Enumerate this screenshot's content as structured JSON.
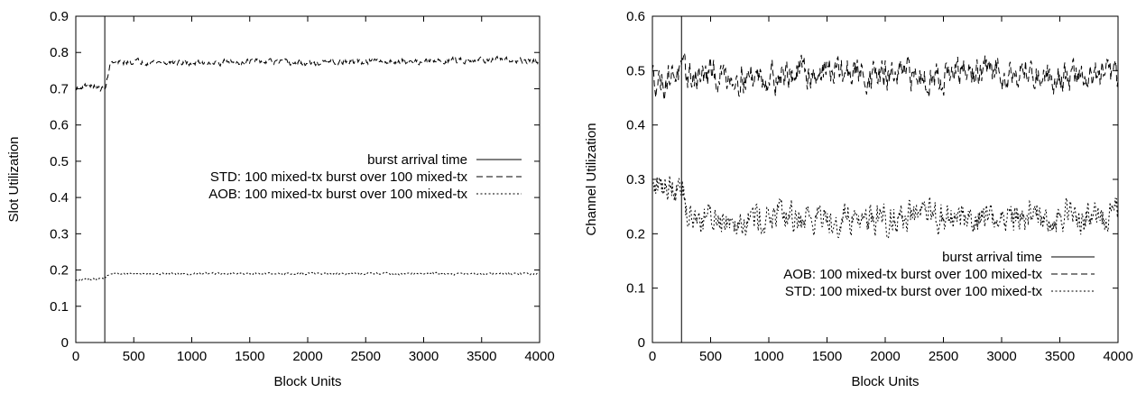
{
  "chart_data": [
    {
      "type": "line",
      "xlabel": "Block Units",
      "ylabel": "Slot Utilization",
      "xlim": [
        0,
        4000
      ],
      "ylim": [
        0,
        0.9
      ],
      "xticks": [
        "0",
        "500",
        "1000",
        "1500",
        "2000",
        "2500",
        "3000",
        "3500",
        "4000"
      ],
      "yticks": [
        "0",
        "0.1",
        "0.2",
        "0.3",
        "0.4",
        "0.5",
        "0.6",
        "0.7",
        "0.8",
        "0.9"
      ],
      "grid": false,
      "legend_position": "right",
      "burst_arrival_x": 250,
      "series": [
        {
          "name": "burst arrival time",
          "style": "solid",
          "kind": "vertical",
          "x": 250
        },
        {
          "name": "STD: 100 mixed-tx burst over 100 mixed-tx",
          "style": "dashed",
          "x": [
            0,
            100,
            200,
            250,
            300,
            500,
            1000,
            1500,
            2000,
            2500,
            3000,
            3500,
            4000
          ],
          "y": [
            0.7,
            0.71,
            0.7,
            0.7,
            0.77,
            0.775,
            0.77,
            0.775,
            0.77,
            0.775,
            0.775,
            0.78,
            0.775
          ]
        },
        {
          "name": "AOB: 100 mixed-tx burst over 100 mixed-tx",
          "style": "dotted",
          "x": [
            0,
            100,
            200,
            250,
            300,
            500,
            1000,
            1500,
            2000,
            2500,
            3000,
            3500,
            4000
          ],
          "y": [
            0.17,
            0.175,
            0.175,
            0.18,
            0.19,
            0.19,
            0.19,
            0.19,
            0.19,
            0.19,
            0.19,
            0.19,
            0.19
          ]
        }
      ]
    },
    {
      "type": "line",
      "xlabel": "Block Units",
      "ylabel": "Channel Utilization",
      "xlim": [
        0,
        4000
      ],
      "ylim": [
        0,
        0.6
      ],
      "xticks": [
        "0",
        "500",
        "1000",
        "1500",
        "2000",
        "2500",
        "3000",
        "3500",
        "4000"
      ],
      "yticks": [
        "0",
        "0.1",
        "0.2",
        "0.3",
        "0.4",
        "0.5",
        "0.6"
      ],
      "grid": false,
      "legend_position": "bottom-right",
      "burst_arrival_x": 250,
      "series": [
        {
          "name": "burst arrival time",
          "style": "solid",
          "kind": "vertical",
          "x": 250
        },
        {
          "name": "AOB: 100 mixed-tx burst over 100 mixed-tx",
          "style": "dashed",
          "x": [
            0,
            100,
            200,
            250,
            300,
            500,
            1000,
            1500,
            2000,
            2500,
            3000,
            3500,
            4000
          ],
          "y": [
            0.49,
            0.48,
            0.5,
            0.49,
            0.49,
            0.49,
            0.49,
            0.5,
            0.49,
            0.49,
            0.5,
            0.49,
            0.49
          ]
        },
        {
          "name": "STD: 100 mixed-tx burst over 100 mixed-tx",
          "style": "dotted",
          "x": [
            0,
            100,
            200,
            250,
            300,
            500,
            1000,
            1500,
            2000,
            2500,
            3000,
            3500,
            4000
          ],
          "y": [
            0.28,
            0.29,
            0.29,
            0.3,
            0.23,
            0.23,
            0.23,
            0.23,
            0.23,
            0.23,
            0.23,
            0.23,
            0.235
          ]
        }
      ]
    }
  ]
}
